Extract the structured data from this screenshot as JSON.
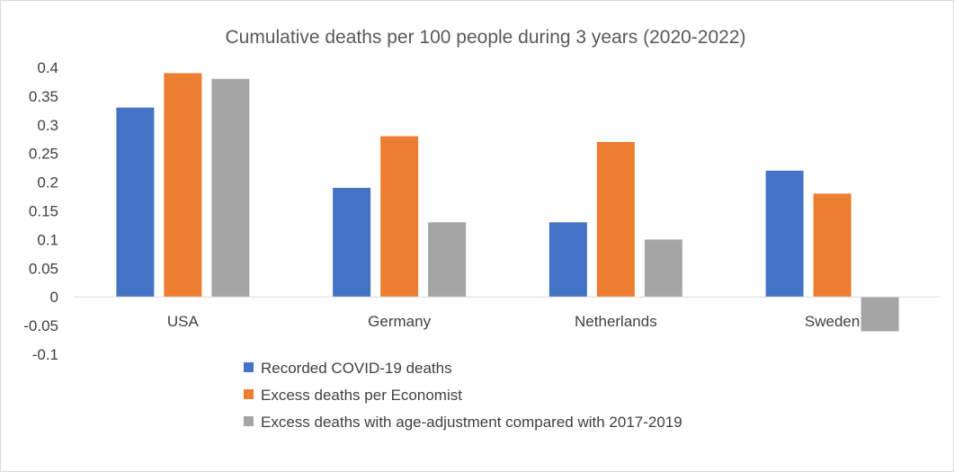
{
  "chart_data": {
    "type": "bar",
    "title": "Cumulative deaths per 100 people during 3 years (2020-2022)",
    "xlabel": "",
    "ylabel": "",
    "categories": [
      "USA",
      "Germany",
      "Netherlands",
      "Sweden"
    ],
    "series": [
      {
        "name": "Recorded COVID-19 deaths",
        "color": "#4472c4",
        "values": [
          0.33,
          0.19,
          0.13,
          0.22
        ]
      },
      {
        "name": "Excess deaths per Economist",
        "color": "#ed7d31",
        "values": [
          0.39,
          0.28,
          0.27,
          0.18
        ]
      },
      {
        "name": "Excess deaths with age-adjustment compared with 2017-2019",
        "color": "#a5a5a5",
        "values": [
          0.38,
          0.13,
          0.1,
          -0.06
        ]
      }
    ],
    "ylim": [
      -0.1,
      0.4
    ],
    "yticks": [
      "0.4",
      "0.35",
      "0.3",
      "0.25",
      "0.2",
      "0.15",
      "0.1",
      "0.05",
      "0",
      "-0.05",
      "-0.1"
    ],
    "grid": false,
    "legend": "bottom-left"
  }
}
